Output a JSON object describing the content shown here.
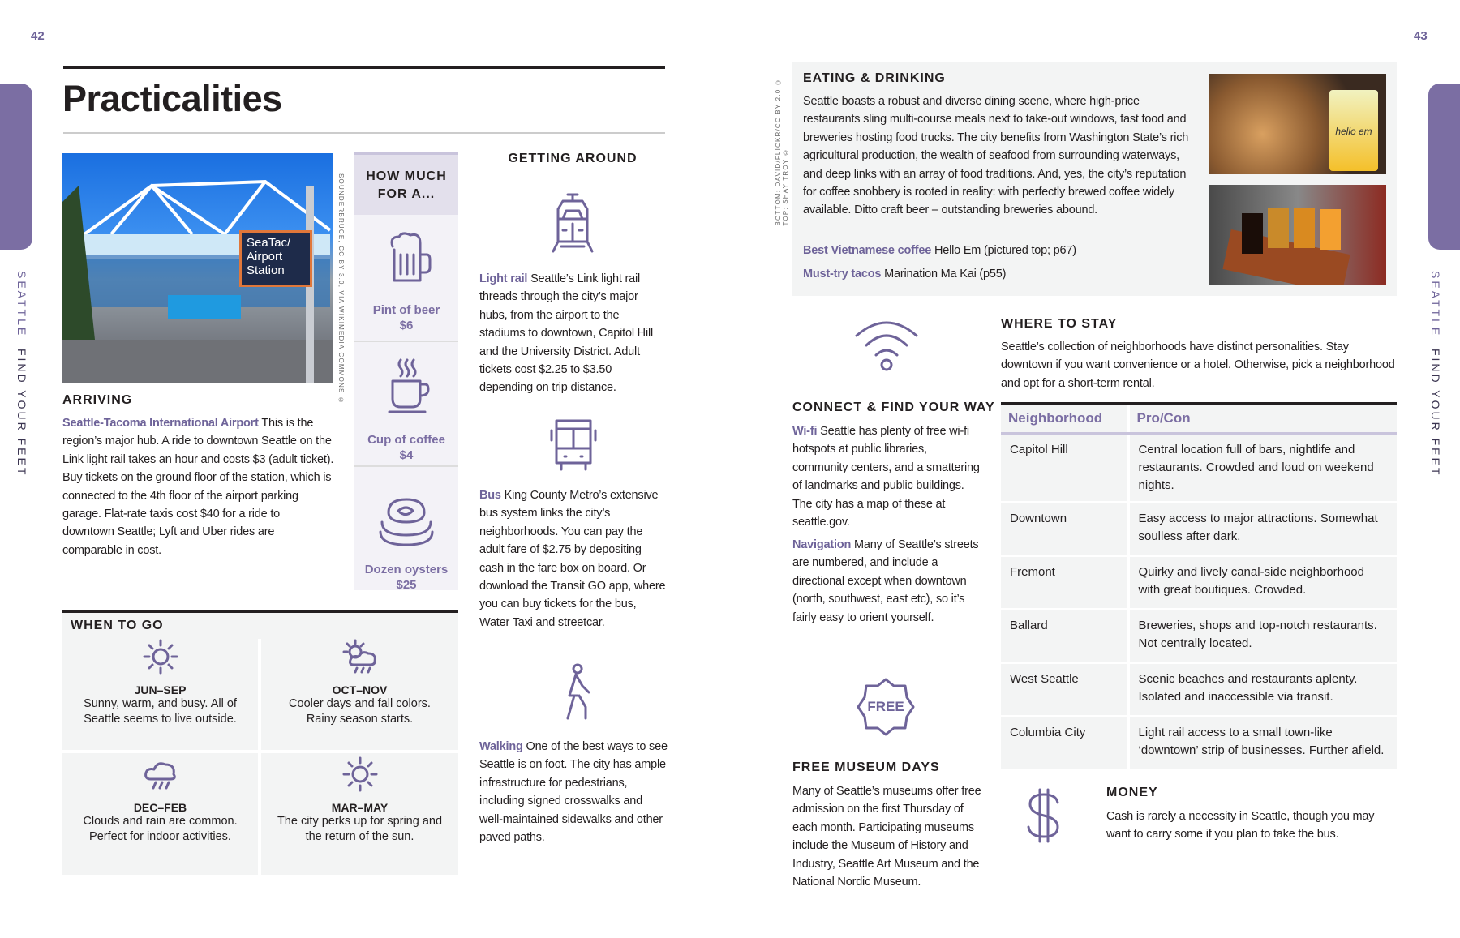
{
  "left_page": {
    "page_number": "42",
    "side_tab": {
      "section": "SEATTLE",
      "chapter": "FIND YOUR FEET"
    },
    "title": "Practicalities",
    "photo": {
      "sign": [
        "SeaTac/",
        "Airport",
        "Station"
      ],
      "credit": "SOUNDERBRUCE, CC BY 3.0, VIA WIKIMEDIA COMMONS ©"
    },
    "arriving": {
      "heading": "ARRIVING",
      "key": "Seattle-Tacoma International Airport",
      "text": " This is the region’s major hub. A ride to downtown Seattle on the Link light rail takes an hour and costs $3 (adult ticket). Buy tickets on the ground floor of the station, which is connected to the 4th floor of the airport parking garage. Flat-rate taxis cost $40 for a ride to downtown Seattle; Lyft and Uber rides are comparable in cost."
    },
    "how_much": {
      "heading": "HOW MUCH FOR A...",
      "items": [
        {
          "icon": "beer-mug-icon",
          "label": "Pint of beer",
          "price": "$6"
        },
        {
          "icon": "coffee-cup-icon",
          "label": "Cup of coffee",
          "price": "$4"
        },
        {
          "icon": "oysters-icon",
          "label": "Dozen oysters",
          "price": "$25"
        }
      ]
    },
    "getting_around": {
      "heading": "GETTING AROUND",
      "items": [
        {
          "icon": "light-rail-icon",
          "key": "Light rail",
          "text": " Seattle’s Link light rail threads through the city’s major hubs, from the airport to the stadiums to downtown, Capitol Hill and the University District. Adult tickets cost $2.25 to $3.50 depending on trip distance."
        },
        {
          "icon": "bus-icon",
          "key": "Bus",
          "text": " King County Metro’s extensive bus system links the city’s neighborhoods. You can pay the adult fare of $2.75 by depositing cash in the fare box on board. Or download the Transit GO app, where you can buy tickets for the bus, Water Taxi and streetcar."
        },
        {
          "icon": "walking-icon",
          "key": "Walking",
          "text": " One of the best ways to see Seattle is on foot. The city has ample infrastructure for pedestrians, including signed crosswalks and well-maintained sidewalks and other paved paths."
        }
      ]
    },
    "when_to_go": {
      "heading": "WHEN TO GO",
      "seasons": [
        {
          "icon": "sun-icon",
          "title": "JUN–SEP",
          "text": "Sunny, warm, and busy. All of Seattle seems to live outside."
        },
        {
          "icon": "sun-cloud-rain-icon",
          "title": "OCT–NOV",
          "text": "Cooler days and fall colors. Rainy season starts."
        },
        {
          "icon": "rain-cloud-icon",
          "title": "DEC–FEB",
          "text": "Clouds and rain are common. Perfect for indoor activities."
        },
        {
          "icon": "sun-icon",
          "title": "MAR–MAY",
          "text": "The city perks up for spring and the return of the sun."
        }
      ]
    }
  },
  "right_page": {
    "page_number": "43",
    "side_tab": {
      "section": "SEATTLE",
      "chapter": "FIND YOUR FEET"
    },
    "photo_credit": [
      "TOP: SHAY TROY ©",
      "BOTTOM: DAVID/FLICKR/CC BY 2.0 ©"
    ],
    "eating": {
      "heading": "EATING & DRINKING",
      "text": "Seattle boasts a robust and diverse dining scene, where high-price restaurants sling multi-course meals next to take-out windows, fast food and breweries hosting food trucks. The city benefits from Washington State’s rich agricultural production, the wealth of seafood from surrounding waterways, and deep links with an array of food traditions. And, yes, the city’s reputation for coffee snobbery is rooted in reality: with perfectly brewed coffee widely available. Ditto craft beer – outstanding breweries abound.",
      "picks": [
        {
          "key": "Best Vietnamese coffee",
          "text": " Hello Em (pictured top; p67)"
        },
        {
          "key": "Must-try tacos",
          "text": " Marination Ma Kai (p55)"
        }
      ],
      "photo_top_sign": "hello em"
    },
    "connect": {
      "heading": "CONNECT & FIND YOUR WAY",
      "items": [
        {
          "key": "Wi-fi",
          "text": " Seattle has plenty of free wi-fi hotspots at public libraries, community centers, and a smattering of landmarks and public buildings. The city has a map of these at seattle.gov."
        },
        {
          "key": "Navigation",
          "text": " Many of Seattle’s streets are numbered, and include a directional except when downtown (north, southwest, east etc), so it’s fairly easy to orient yourself."
        }
      ]
    },
    "free_badge": "FREE",
    "museum": {
      "heading": "FREE MUSEUM DAYS",
      "text": "Many of Seattle’s museums offer free admission on the first Thursday of each month. Participating museums include the Museum of History and Industry, Seattle Art Museum and the National Nordic Museum."
    },
    "stay": {
      "heading": "WHERE TO STAY",
      "text": "Seattle’s collection of neighborhoods have distinct personalities. Stay downtown if you want convenience or a hotel. Otherwise, pick a neighborhood and opt for a short-term rental.",
      "columns": [
        "Neighborhood",
        "Pro/Con"
      ],
      "rows": [
        [
          "Capitol Hill",
          "Central location full of bars, nightlife and restaurants. Crowded and loud on weekend nights."
        ],
        [
          "Downtown",
          "Easy access to major attractions. Somewhat soulless after dark."
        ],
        [
          "Fremont",
          "Quirky and lively canal-side neighborhood with great boutiques. Crowded."
        ],
        [
          "Ballard",
          "Breweries, shops and top-notch restaurants. Not centrally located."
        ],
        [
          "West Seattle",
          "Scenic beaches and restaurants aplenty. Isolated and inaccessible via transit."
        ],
        [
          "Columbia City",
          "Light rail access to a small town-like ‘downtown’ strip of businesses. Further afield."
        ]
      ]
    },
    "money": {
      "heading": "MONEY",
      "text": "Cash is rarely a necessity in Seattle, though you may want to carry some if you plan to take the bus."
    }
  },
  "colors": {
    "accent": "#6e6399",
    "tab": "#7b6ea3",
    "panel": "#f3f4f4",
    "panel_purple": "#e3e0ec"
  }
}
